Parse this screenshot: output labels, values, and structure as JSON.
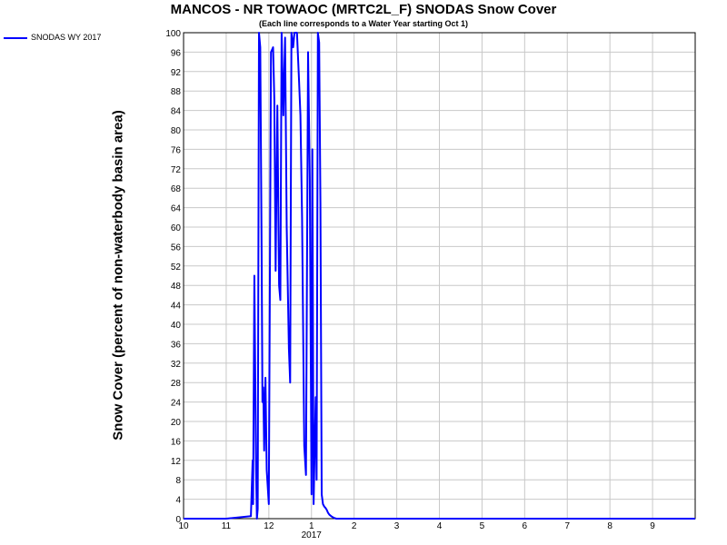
{
  "chart_data": {
    "type": "line",
    "title": "MANCOS - NR TOWAOC (MRTC2L_F) SNODAS Snow Cover",
    "subtitle": "(Each line corresponds to a Water Year starting Oct 1)",
    "ylabel": "Snow Cover (percent of non-waterbody basin area)",
    "xlabel": "",
    "year_label": "2017",
    "xlim": [
      0,
      12
    ],
    "ylim": [
      0,
      100
    ],
    "x_ticks": [
      0,
      1,
      2,
      3,
      4,
      5,
      6,
      7,
      8,
      9,
      10,
      11
    ],
    "x_tick_labels": [
      "10",
      "11",
      "12",
      "1",
      "2",
      "3",
      "4",
      "5",
      "6",
      "7",
      "8",
      "9"
    ],
    "y_ticks": [
      0,
      4,
      8,
      12,
      16,
      20,
      24,
      28,
      32,
      36,
      40,
      44,
      48,
      52,
      56,
      60,
      64,
      68,
      72,
      76,
      80,
      84,
      88,
      92,
      96,
      100
    ],
    "grid": true,
    "legend_position": "top-left",
    "series": [
      {
        "name": "SNODAS WY 2017",
        "color": "#0000ff",
        "x": [
          0,
          1.0,
          1.58,
          1.62,
          1.63,
          1.66,
          1.7,
          1.72,
          1.74,
          1.77,
          1.8,
          1.83,
          1.85,
          1.87,
          1.89,
          1.92,
          1.95,
          2.0,
          2.05,
          2.1,
          2.13,
          2.16,
          2.2,
          2.24,
          2.27,
          2.3,
          2.34,
          2.38,
          2.42,
          2.47,
          2.5,
          2.53,
          2.57,
          2.6,
          2.62,
          2.64,
          2.66,
          2.68,
          2.71,
          2.74,
          2.78,
          2.83,
          2.87,
          2.92,
          2.96,
          3.0,
          3.02,
          3.05,
          3.1,
          3.12,
          3.15,
          3.18,
          3.21,
          3.24,
          3.27,
          3.3,
          3.33,
          3.36,
          3.39,
          3.42,
          3.45,
          3.48,
          3.5,
          3.52,
          3.55,
          3.58,
          3.61,
          3.64,
          3.68,
          3.72,
          3.76,
          3.8,
          3.9,
          4.0,
          4.1,
          4.2,
          4.3,
          4.4,
          4.5,
          4.58,
          4.62,
          4.65,
          4.67,
          4.69,
          4.71,
          4.73,
          4.75,
          4.77,
          4.79,
          4.81,
          4.83,
          4.85,
          4.87,
          4.89,
          4.91,
          4.93,
          4.95,
          4.97,
          4.99,
          5.01,
          5.03,
          5.05,
          5.07,
          5.09,
          5.11,
          5.13,
          5.15,
          5.17,
          5.19,
          5.21,
          5.23,
          5.25,
          5.3,
          5.4,
          5.6,
          5.8,
          6.0,
          8.0,
          10.0,
          12.0
        ],
        "values": [
          0,
          0,
          0.5,
          12,
          3,
          50,
          10,
          0,
          2,
          100,
          97,
          55,
          24,
          27,
          14,
          29,
          10,
          3,
          96,
          97,
          86,
          51,
          85,
          48,
          45,
          100,
          83,
          99,
          60,
          35,
          28,
          100,
          97,
          100,
          100,
          100,
          100,
          96,
          90,
          83,
          62,
          15,
          9,
          96,
          70,
          5,
          76,
          3,
          25,
          8,
          100,
          98,
          65,
          5,
          3,
          2.5,
          2.2,
          1.8,
          1.2,
          0.8,
          0.6,
          0.4,
          0.3,
          0.2,
          0.1,
          0,
          0,
          0,
          0,
          0,
          0,
          0,
          0,
          0,
          0,
          0,
          0,
          0,
          0,
          0,
          0,
          0,
          0,
          0,
          0,
          0,
          0,
          0,
          0,
          0,
          0,
          0,
          0,
          0,
          0,
          0,
          0,
          0,
          0,
          0,
          0,
          0,
          0,
          0,
          0,
          0,
          0,
          0,
          0,
          0,
          0,
          0,
          0,
          0,
          0,
          0,
          0,
          0,
          0,
          0
        ]
      }
    ]
  }
}
